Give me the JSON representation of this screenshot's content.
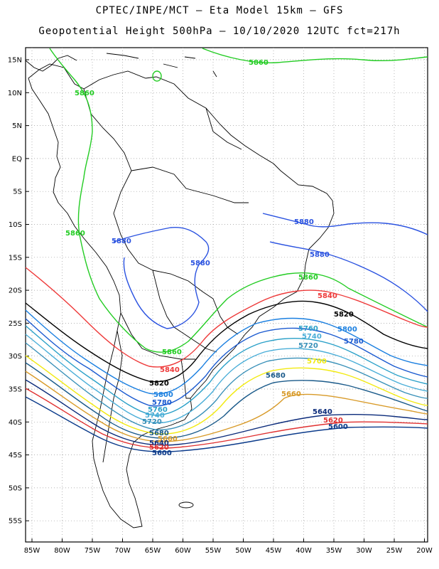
{
  "header": {
    "title_line1": "CPTEC/INPE/MCT –  Eta Model 15km – GFS",
    "title_line2": "Geopotential Height 500hPa – 10/10/2020 12UTC fct=217h"
  },
  "map": {
    "lat_ticks": [
      "15N",
      "10N",
      "5N",
      "EQ",
      "5S",
      "10S",
      "15S",
      "20S",
      "25S",
      "30S",
      "35S",
      "40S",
      "45S",
      "50S",
      "55S"
    ],
    "lon_ticks": [
      "85W",
      "80W",
      "75W",
      "70W",
      "65W",
      "60W",
      "55W",
      "50W",
      "45W",
      "40W",
      "35W",
      "30W",
      "25W",
      "20W"
    ],
    "colors": {
      "5880": "#2a52e0",
      "5860": "#22cc22",
      "5840": "#ee3a3a",
      "5820": "#000000",
      "5800": "#1a7fe0",
      "5780": "#1a5ad0",
      "5760": "#2aa0c8",
      "5740": "#4aaed8",
      "5720": "#3890b8",
      "5700": "#f2ea10",
      "5680": "#1a5a8a",
      "5660": "#d89a28",
      "5640": "#0a2a7a",
      "5620": "#e03030",
      "5600": "#0a3a8a"
    },
    "contour_labels": [
      {
        "text": "5860",
        "key": "5860"
      },
      {
        "text": "5860",
        "key": "5860"
      },
      {
        "text": "5860",
        "key": "5860"
      },
      {
        "text": "5880",
        "key": "5880"
      },
      {
        "text": "5880",
        "key": "5880"
      },
      {
        "text": "5880",
        "key": "5880"
      },
      {
        "text": "5880",
        "key": "5880"
      },
      {
        "text": "5860",
        "key": "5860"
      },
      {
        "text": "5860",
        "key": "5860"
      },
      {
        "text": "5840",
        "key": "5840"
      },
      {
        "text": "5840",
        "key": "5840"
      },
      {
        "text": "5820",
        "key": "5820"
      },
      {
        "text": "5820",
        "key": "5820"
      },
      {
        "text": "5800",
        "key": "5800"
      },
      {
        "text": "5800",
        "key": "5800"
      },
      {
        "text": "5780",
        "key": "5780"
      },
      {
        "text": "5780",
        "key": "5780"
      },
      {
        "text": "5760",
        "key": "5760"
      },
      {
        "text": "5760",
        "key": "5760"
      },
      {
        "text": "5740",
        "key": "5740"
      },
      {
        "text": "5740",
        "key": "5740"
      },
      {
        "text": "5720",
        "key": "5720"
      },
      {
        "text": "5720",
        "key": "5720"
      },
      {
        "text": "5700",
        "key": "5700"
      },
      {
        "text": "5680",
        "key": "5680"
      },
      {
        "text": "5680",
        "key": "5680"
      },
      {
        "text": "5660",
        "key": "5660"
      },
      {
        "text": "5660",
        "key": "5660"
      },
      {
        "text": "5640",
        "key": "5640"
      },
      {
        "text": "5640",
        "key": "5640"
      },
      {
        "text": "5620",
        "key": "5620"
      },
      {
        "text": "5620",
        "key": "5620"
      },
      {
        "text": "5600",
        "key": "5600"
      },
      {
        "text": "5600",
        "key": "5600"
      }
    ]
  }
}
